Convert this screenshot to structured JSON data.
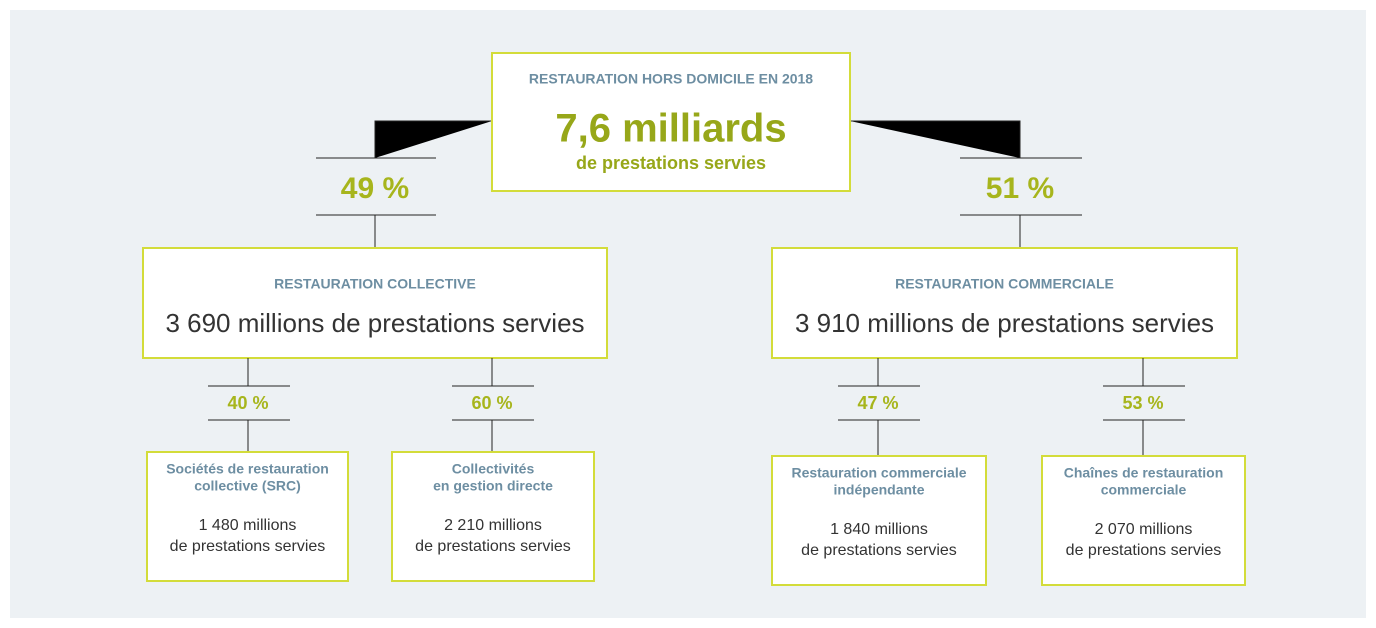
{
  "root": {
    "title": "RESTAURATION HORS DOMICILE EN 2018",
    "value": "7,6 milliards",
    "subtitle": "de prestations servies"
  },
  "branches": [
    {
      "share": "49 %",
      "title": "RESTAURATION COLLECTIVE",
      "text": "3 690 millions de prestations servies",
      "children": [
        {
          "share": "40 %",
          "title": [
            "Sociétés de restauration",
            "collective (SRC)"
          ],
          "text": [
            "1 480 millions",
            "de prestations servies"
          ]
        },
        {
          "share": "60 %",
          "title": [
            "Collectivités",
            "en gestion directe"
          ],
          "text": [
            "2 210 millions",
            "de prestations servies"
          ]
        }
      ]
    },
    {
      "share": "51 %",
      "title": "RESTAURATION COMMERCIALE",
      "text": "3 910 millions de prestations servies",
      "children": [
        {
          "share": "47 %",
          "title": [
            "Restauration commerciale",
            "indépendante"
          ],
          "text": [
            "1 840 millions",
            "de prestations servies"
          ]
        },
        {
          "share": "53 %",
          "title": [
            "Chaînes de restauration",
            "commerciale"
          ],
          "text": [
            "2 070 millions",
            "de prestations servies"
          ]
        }
      ]
    }
  ]
}
